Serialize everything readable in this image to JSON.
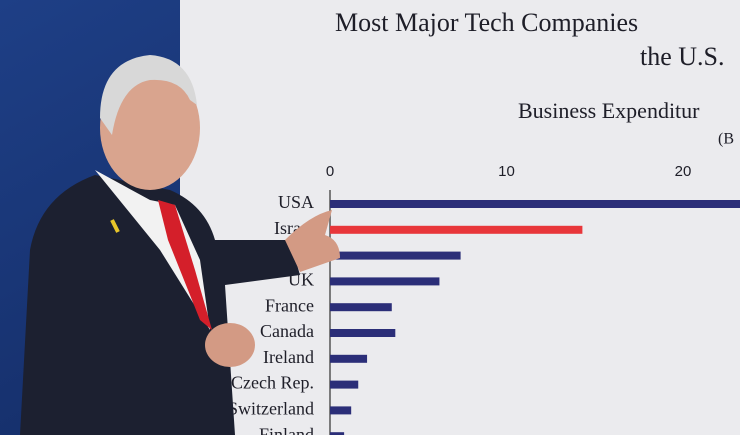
{
  "chart_data": {
    "type": "bar",
    "orientation": "horizontal",
    "title": "Most Major Tech Companies",
    "title_line2": "the U.S.",
    "subtitle": "Business Expenditur",
    "unit_note": "(B",
    "categories": [
      "USA",
      "Israel",
      null,
      "UK",
      "France",
      "Canada",
      "Ireland",
      "Czech Rep.",
      "Switzerland",
      "Finland"
    ],
    "values": [
      25,
      14.3,
      7.4,
      6.2,
      3.5,
      3.7,
      2.1,
      1.6,
      1.2,
      0.8
    ],
    "colors": [
      "#2b2e78",
      "#e8363a",
      "#2b2e78",
      "#2b2e78",
      "#2b2e78",
      "#2b2e78",
      "#2b2e78",
      "#2b2e78",
      "#2b2e78",
      "#2b2e78"
    ],
    "xlim": [
      0,
      30
    ],
    "xticks": [
      0,
      10,
      20
    ],
    "grid": false
  }
}
